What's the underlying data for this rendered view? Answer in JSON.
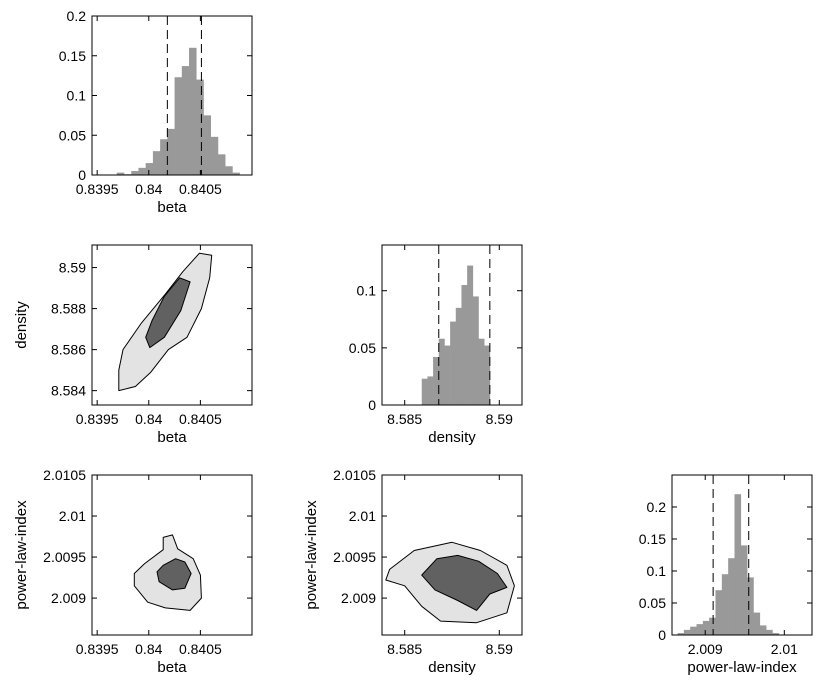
{
  "chart_data": [
    {
      "id": "beta-hist",
      "type": "bar",
      "xlabel": "beta",
      "xlim": [
        0.83945,
        0.841
      ],
      "ylim": [
        0,
        0.2
      ],
      "xticks": [
        0.8395,
        0.84,
        0.8405
      ],
      "xtick_labels": [
        "0.8395",
        "0.84",
        "0.8405"
      ],
      "yticks": [
        0,
        0.05,
        0.1,
        0.15,
        0.2
      ],
      "ytick_labels": [
        "0",
        "0.05",
        "0.1",
        "0.15",
        "0.2"
      ],
      "bin_edges": [
        0.83969,
        0.83976,
        0.83983,
        0.8399,
        0.83997,
        0.84004,
        0.84011,
        0.84018,
        0.84025,
        0.84032,
        0.84039,
        0.84046,
        0.84053,
        0.8406,
        0.84067,
        0.84074,
        0.84081
      ],
      "values": [
        0.003,
        0.001,
        0.005,
        0.009,
        0.015,
        0.03,
        0.045,
        0.058,
        0.123,
        0.137,
        0.16,
        0.12,
        0.075,
        0.048,
        0.026,
        0.011,
        0.003
      ],
      "bin_width": 7e-05,
      "dashed_lines": [
        0.84018,
        0.84051
      ],
      "colors": {
        "bar": "#999999",
        "dash": "#000000"
      }
    },
    {
      "id": "density-vs-beta",
      "type": "contour",
      "xlabel": "beta",
      "ylabel": "density",
      "xlim": [
        0.83945,
        0.841
      ],
      "ylim": [
        8.5833,
        8.5911
      ],
      "xticks": [
        0.8395,
        0.84,
        0.8405
      ],
      "xtick_labels": [
        "0.8395",
        "0.84",
        "0.8405"
      ],
      "yticks": [
        8.584,
        8.586,
        8.588,
        8.59
      ],
      "ytick_labels": [
        "8.584",
        "8.586",
        "8.588",
        "8.59"
      ],
      "outer": [
        [
          0.83971,
          8.584
        ],
        [
          0.83987,
          8.5842
        ],
        [
          0.84002,
          8.5849
        ],
        [
          0.84019,
          8.586
        ],
        [
          0.84037,
          8.5866
        ],
        [
          0.84051,
          8.588
        ],
        [
          0.84059,
          8.5895
        ],
        [
          0.84061,
          8.5906
        ],
        [
          0.84049,
          8.5907
        ],
        [
          0.84033,
          8.5898
        ],
        [
          0.84016,
          8.5887
        ],
        [
          0.83993,
          8.5873
        ],
        [
          0.83975,
          8.586
        ],
        [
          0.83971,
          8.585
        ]
      ],
      "inner": [
        [
          0.84001,
          8.5861
        ],
        [
          0.84015,
          8.5866
        ],
        [
          0.84031,
          8.5879
        ],
        [
          0.8404,
          8.5893
        ],
        [
          0.8403,
          8.5895
        ],
        [
          0.84015,
          8.5886
        ],
        [
          0.84003,
          8.5874
        ],
        [
          0.83997,
          8.5866
        ]
      ],
      "colors": {
        "outer": "#e3e3e3",
        "inner": "#616161",
        "edge": "#000000"
      }
    },
    {
      "id": "density-hist",
      "type": "bar",
      "xlabel": "density",
      "xlim": [
        8.5838,
        8.5912
      ],
      "ylim": [
        0,
        0.14
      ],
      "xticks": [
        8.585,
        8.59
      ],
      "xtick_labels": [
        "8.585",
        "8.59"
      ],
      "yticks": [
        0,
        0.05,
        0.1
      ],
      "ytick_labels": [
        "0",
        "0.05",
        "0.1"
      ],
      "bin_edges": [
        8.5859,
        8.5862,
        8.5865,
        8.5868,
        8.5871,
        8.5874,
        8.5877,
        8.588,
        8.5883,
        8.5886,
        8.5889,
        8.5892
      ],
      "values": [
        0.023,
        0.025,
        0.042,
        0.058,
        0.052,
        0.073,
        0.085,
        0.105,
        0.122,
        0.095,
        0.058,
        0.052
      ],
      "bin_width": 0.0003,
      "dashed_lines": [
        8.5868,
        8.5895
      ],
      "colors": {
        "bar": "#999999",
        "dash": "#000000"
      }
    },
    {
      "id": "pli-vs-beta",
      "type": "contour",
      "xlabel": "beta",
      "ylabel": "power-law-index",
      "xlim": [
        0.83945,
        0.841
      ],
      "ylim": [
        2.00855,
        2.0105
      ],
      "xticks": [
        0.8395,
        0.84,
        0.8405
      ],
      "xtick_labels": [
        "0.8395",
        "0.84",
        "0.8405"
      ],
      "yticks": [
        2.009,
        2.0095,
        2.01,
        2.0105
      ],
      "ytick_labels": [
        "2.009",
        "2.0095",
        "2.01",
        "2.0105"
      ],
      "outer": [
        [
          0.83986,
          2.00915
        ],
        [
          0.83999,
          2.00895
        ],
        [
          0.84016,
          2.00888
        ],
        [
          0.8404,
          2.00885
        ],
        [
          0.84051,
          2.009
        ],
        [
          0.8405,
          2.00928
        ],
        [
          0.84043,
          2.00948
        ],
        [
          0.84028,
          2.0096
        ],
        [
          0.84023,
          2.00977
        ],
        [
          0.84014,
          2.00974
        ],
        [
          0.84014,
          2.00959
        ],
        [
          0.83996,
          2.00942
        ],
        [
          0.83986,
          2.0093
        ]
      ],
      "inner": [
        [
          0.8401,
          2.0092
        ],
        [
          0.84023,
          2.0091
        ],
        [
          0.84035,
          2.00912
        ],
        [
          0.84041,
          2.0093
        ],
        [
          0.84035,
          2.00944
        ],
        [
          0.84026,
          2.00948
        ],
        [
          0.84014,
          2.0094
        ],
        [
          0.84008,
          2.00932
        ]
      ],
      "colors": {
        "outer": "#e3e3e3",
        "inner": "#616161",
        "edge": "#000000"
      }
    },
    {
      "id": "pli-vs-density",
      "type": "contour",
      "xlabel": "density",
      "ylabel": "power-law-index",
      "xlim": [
        8.5838,
        8.5912
      ],
      "ylim": [
        2.00855,
        2.0105
      ],
      "xticks": [
        8.585,
        8.59
      ],
      "xtick_labels": [
        "8.585",
        "8.59"
      ],
      "yticks": [
        2.009,
        2.0095,
        2.01,
        2.0105
      ],
      "ytick_labels": [
        "2.009",
        "2.0095",
        "2.01",
        "2.0105"
      ],
      "outer": [
        [
          8.584,
          2.00922
        ],
        [
          8.585,
          2.00915
        ],
        [
          8.5859,
          2.0089
        ],
        [
          8.5869,
          2.00872
        ],
        [
          8.5888,
          2.0087
        ],
        [
          8.5904,
          2.00882
        ],
        [
          8.5908,
          2.00915
        ],
        [
          8.5904,
          2.0094
        ],
        [
          8.589,
          2.00958
        ],
        [
          8.5875,
          2.00968
        ],
        [
          8.5855,
          2.00958
        ],
        [
          8.5842,
          2.00935
        ]
      ],
      "inner": [
        [
          8.5859,
          2.00928
        ],
        [
          8.5866,
          2.0091
        ],
        [
          8.5878,
          2.00897
        ],
        [
          8.5888,
          2.00885
        ],
        [
          8.5895,
          2.00905
        ],
        [
          8.5904,
          2.00913
        ],
        [
          8.5899,
          2.0093
        ],
        [
          8.5889,
          2.00945
        ],
        [
          8.5878,
          2.00952
        ],
        [
          8.5867,
          2.00948
        ]
      ],
      "colors": {
        "outer": "#e3e3e3",
        "inner": "#616161",
        "edge": "#000000"
      }
    },
    {
      "id": "pli-hist",
      "type": "bar",
      "xlabel": "power-law-index",
      "xlim": [
        2.00858,
        2.01035
      ],
      "ylim": [
        0,
        0.25
      ],
      "xticks": [
        2.009,
        2.01
      ],
      "xtick_labels": [
        "2.009",
        "2.01"
      ],
      "yticks": [
        0,
        0.05,
        0.1,
        0.15,
        0.2
      ],
      "ytick_labels": [
        "0",
        "0.05",
        "0.1",
        "0.15",
        "0.2"
      ],
      "bin_edges": [
        2.00865,
        2.00873,
        2.00881,
        2.00889,
        2.00897,
        2.00905,
        2.00913,
        2.00921,
        2.00929,
        2.00937,
        2.00945,
        2.00953,
        2.00961,
        2.00969,
        2.00977,
        2.00985
      ],
      "values": [
        0.003,
        0.008,
        0.013,
        0.017,
        0.022,
        0.027,
        0.07,
        0.095,
        0.12,
        0.22,
        0.14,
        0.09,
        0.035,
        0.015,
        0.008,
        0.003
      ],
      "bin_width": 8e-05,
      "dashed_lines": [
        2.0091,
        2.00955
      ],
      "colors": {
        "bar": "#999999",
        "dash": "#000000"
      }
    }
  ]
}
